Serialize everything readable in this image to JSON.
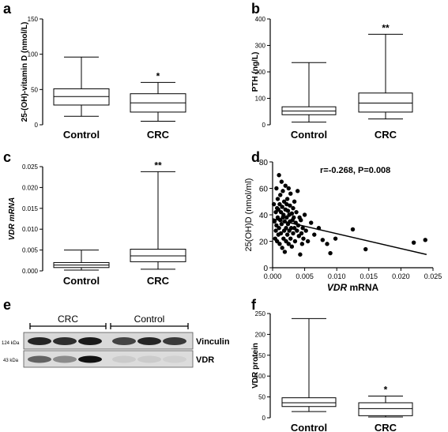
{
  "chart_data": [
    {
      "panel_label": "a",
      "type": "boxplot",
      "ylabel": "25-(OH)-vitamin D (nmol/L)",
      "ylim": [
        0,
        150
      ],
      "yticks": [
        0,
        50,
        100,
        150
      ],
      "categories": [
        "Control",
        "CRC"
      ],
      "boxes": [
        {
          "min": 12,
          "q1": 28,
          "median": 40,
          "q3": 51,
          "max": 96
        },
        {
          "min": 5,
          "q1": 18,
          "median": 31,
          "q3": 44,
          "max": 60
        }
      ],
      "annotations": [
        "",
        "*"
      ]
    },
    {
      "panel_label": "b",
      "type": "boxplot",
      "ylabel": "PTH (ng/L)",
      "ylim": [
        0,
        400
      ],
      "yticks": [
        0,
        100,
        200,
        300,
        400
      ],
      "categories": [
        "Control",
        "CRC"
      ],
      "boxes": [
        {
          "min": 10,
          "q1": 38,
          "median": 52,
          "q3": 68,
          "max": 235
        },
        {
          "min": 22,
          "q1": 48,
          "median": 82,
          "q3": 120,
          "max": 342
        }
      ],
      "annotations": [
        "",
        "**"
      ]
    },
    {
      "panel_label": "c",
      "type": "boxplot",
      "ylabel": "VDR mRNA",
      "ylim": [
        0,
        0.025
      ],
      "yticks": [
        "0.000",
        "0.005",
        "0.010",
        "0.015",
        "0.020",
        "0.025"
      ],
      "categories": [
        "Control",
        "CRC"
      ],
      "boxes": [
        {
          "min": 0.0002,
          "q1": 0.0008,
          "median": 0.0014,
          "q3": 0.002,
          "max": 0.005
        },
        {
          "min": 0.0004,
          "q1": 0.0022,
          "median": 0.0036,
          "q3": 0.0052,
          "max": 0.0238
        }
      ],
      "annotations": [
        "",
        "**"
      ]
    },
    {
      "panel_label": "d",
      "type": "scatter",
      "xlabel_italic": "VDR",
      "xlabel_rest": " mRNA",
      "ylabel": "25(OH)D (nmol/ml)",
      "xlim": [
        0,
        0.025
      ],
      "ylim": [
        0,
        80
      ],
      "xticks": [
        "0.000",
        "0.005",
        "0.010",
        "0.015",
        "0.020",
        "0.025"
      ],
      "yticks": [
        0,
        20,
        40,
        60,
        80
      ],
      "annotation": "r=-0.268, P=0.008",
      "regression": {
        "x": [
          0,
          0.024
        ],
        "y": [
          37,
          10
        ]
      },
      "points": [
        [
          0.0002,
          48
        ],
        [
          0.0003,
          35
        ],
        [
          0.0004,
          22
        ],
        [
          0.0005,
          42
        ],
        [
          0.0005,
          28
        ],
        [
          0.0006,
          60
        ],
        [
          0.0006,
          32
        ],
        [
          0.0007,
          45
        ],
        [
          0.0007,
          20
        ],
        [
          0.0008,
          38
        ],
        [
          0.0008,
          52
        ],
        [
          0.0009,
          25
        ],
        [
          0.0009,
          44
        ],
        [
          0.001,
          30
        ],
        [
          0.001,
          70
        ],
        [
          0.0011,
          18
        ],
        [
          0.0011,
          48
        ],
        [
          0.0012,
          36
        ],
        [
          0.0012,
          55
        ],
        [
          0.0013,
          26
        ],
        [
          0.0013,
          42
        ],
        [
          0.0014,
          65
        ],
        [
          0.0014,
          33
        ],
        [
          0.0015,
          15
        ],
        [
          0.0015,
          46
        ],
        [
          0.0016,
          38
        ],
        [
          0.0016,
          58
        ],
        [
          0.0017,
          22
        ],
        [
          0.0017,
          40
        ],
        [
          0.0018,
          28
        ],
        [
          0.0018,
          50
        ],
        [
          0.0019,
          35
        ],
        [
          0.0019,
          12
        ],
        [
          0.002,
          44
        ],
        [
          0.002,
          62
        ],
        [
          0.0021,
          30
        ],
        [
          0.0021,
          20
        ],
        [
          0.0022,
          48
        ],
        [
          0.0022,
          38
        ],
        [
          0.0023,
          25
        ],
        [
          0.0023,
          52
        ],
        [
          0.0024,
          33
        ],
        [
          0.0024,
          43
        ],
        [
          0.0025,
          18
        ],
        [
          0.0025,
          60
        ],
        [
          0.0026,
          28
        ],
        [
          0.0026,
          40
        ],
        [
          0.0027,
          35
        ],
        [
          0.0027,
          47
        ],
        [
          0.0028,
          22
        ],
        [
          0.0028,
          56
        ],
        [
          0.0029,
          30
        ],
        [
          0.003,
          41
        ],
        [
          0.003,
          16
        ],
        [
          0.0031,
          36
        ],
        [
          0.0032,
          45
        ],
        [
          0.0032,
          26
        ],
        [
          0.0033,
          38
        ],
        [
          0.0034,
          30
        ],
        [
          0.0034,
          50
        ],
        [
          0.0035,
          20
        ],
        [
          0.0036,
          34
        ],
        [
          0.0037,
          42
        ],
        [
          0.0038,
          28
        ],
        [
          0.0039,
          58
        ],
        [
          0.004,
          32
        ],
        [
          0.0041,
          24
        ],
        [
          0.0042,
          38
        ],
        [
          0.0043,
          10
        ],
        [
          0.0044,
          36
        ],
        [
          0.0045,
          26
        ],
        [
          0.0046,
          18
        ],
        [
          0.0047,
          30
        ],
        [
          0.0048,
          22
        ],
        [
          0.005,
          40
        ],
        [
          0.0052,
          28
        ],
        [
          0.0055,
          20
        ],
        [
          0.006,
          34
        ],
        [
          0.0065,
          25
        ],
        [
          0.0072,
          30
        ],
        [
          0.0078,
          21
        ],
        [
          0.0085,
          18
        ],
        [
          0.009,
          11
        ],
        [
          0.0098,
          22
        ],
        [
          0.0125,
          29
        ],
        [
          0.0145,
          14
        ],
        [
          0.022,
          19
        ],
        [
          0.0238,
          21
        ]
      ]
    },
    {
      "panel_label": "f",
      "type": "boxplot",
      "ylabel": "VDR protein",
      "ylim": [
        0,
        250
      ],
      "yticks": [
        0,
        50,
        100,
        150,
        200,
        250
      ],
      "categories": [
        "Control",
        "CRC"
      ],
      "boxes": [
        {
          "min": 15,
          "q1": 27,
          "median": 36,
          "q3": 48,
          "max": 238
        },
        {
          "min": 2,
          "q1": 5,
          "median": 22,
          "q3": 36,
          "max": 52
        }
      ],
      "annotations": [
        "",
        "*"
      ]
    }
  ],
  "western_blot": {
    "panel_label": "e",
    "groups": [
      "CRC",
      "Control"
    ],
    "marker_labels": [
      "124 kDa",
      "43 kDa"
    ],
    "bands": [
      "Vinculin",
      "VDR"
    ],
    "vinculin_intensity": [
      0.9,
      0.85,
      0.95,
      0.75,
      0.9,
      0.8
    ],
    "vdr_intensity": [
      0.6,
      0.4,
      1.0,
      0.08,
      0.08,
      0.06
    ]
  }
}
